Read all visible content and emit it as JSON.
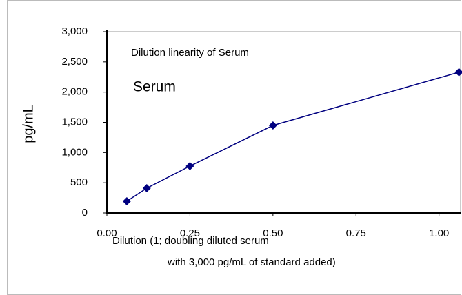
{
  "chart_data": {
    "type": "line",
    "title": "Dilution linearity of Serum",
    "annotation": "Serum",
    "ylabel": "pg/mL",
    "xlabel": [
      "Dilution (1; doubling diluted serum",
      "with 3,000 pg/mL of standard added)"
    ],
    "x": [
      0.06,
      0.12,
      0.25,
      0.5,
      1.06
    ],
    "series": [
      {
        "name": "Serum",
        "color": "#000080",
        "values": [
          194,
          411,
          776,
          1449,
          2330
        ]
      }
    ],
    "xlim": [
      0,
      1.065
    ],
    "xticks": [
      {
        "value": 0,
        "label": "0.00"
      },
      {
        "value": 0.25,
        "label": "0.25"
      },
      {
        "value": 0.5,
        "label": "0.50"
      },
      {
        "value": 0.75,
        "label": "0.75"
      },
      {
        "value": 1,
        "label": "1.00"
      }
    ],
    "ylim": [
      0,
      3000
    ],
    "yticks": [
      0,
      500,
      {
        "value": 1000,
        "label": "1,000"
      },
      {
        "value": 1500,
        "label": "1,500"
      },
      {
        "value": 2000,
        "label": "2,000"
      },
      {
        "value": 2500,
        "label": "2,500"
      },
      {
        "value": 3000,
        "label": "3,000"
      }
    ],
    "grid": false
  }
}
